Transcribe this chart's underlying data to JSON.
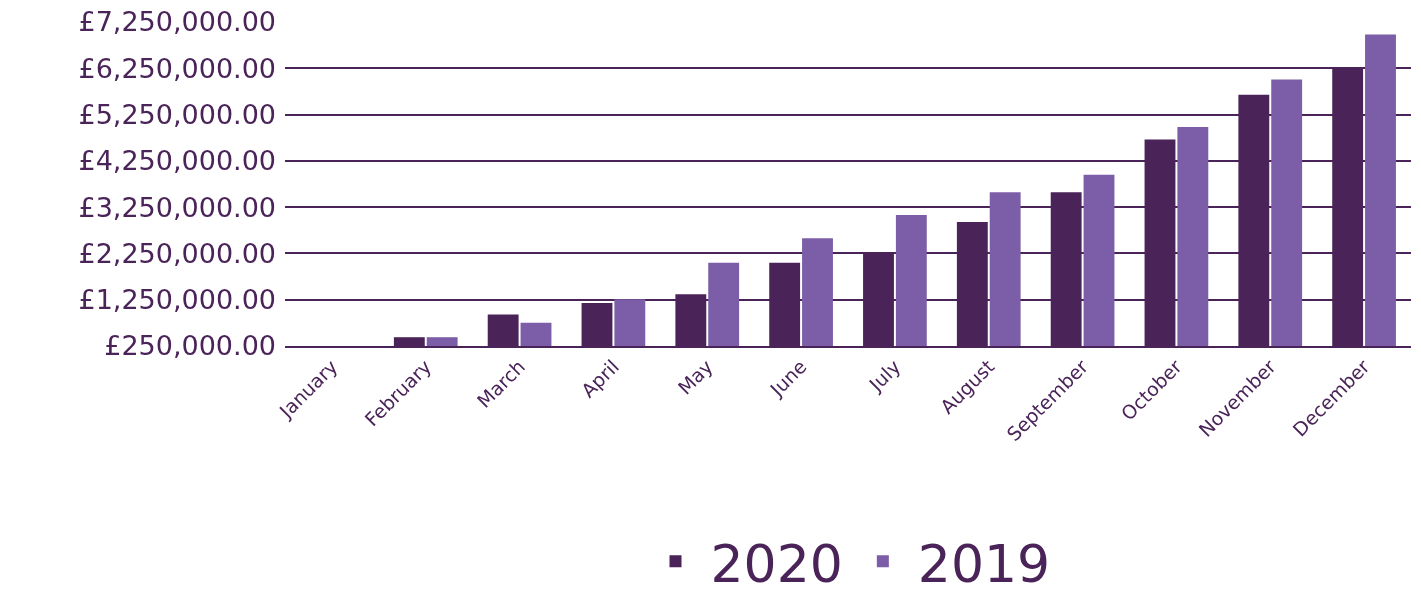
{
  "chart_data": {
    "type": "bar",
    "categories": [
      "January",
      "February",
      "March",
      "April",
      "May",
      "June",
      "July",
      "August",
      "September",
      "October",
      "November",
      "December"
    ],
    "series": [
      {
        "name": "2020",
        "color": "#4a2359",
        "values": [
          null,
          440000,
          930000,
          1180000,
          1370000,
          2050000,
          2250000,
          2930000,
          3570000,
          4710000,
          5680000,
          6250000
        ]
      },
      {
        "name": "2019",
        "color": "#7b5ea7",
        "values": [
          null,
          440000,
          750000,
          1260000,
          2050000,
          2580000,
          3080000,
          3570000,
          3950000,
          4980000,
          6010000,
          6980000
        ]
      }
    ],
    "ylim": [
      250000,
      7250000
    ],
    "yticks": [
      {
        "value": 250000,
        "label": "£250,000.00"
      },
      {
        "value": 1250000,
        "label": "£1,250,000.00"
      },
      {
        "value": 2250000,
        "label": "£2,250,000.00"
      },
      {
        "value": 3250000,
        "label": "£3,250,000.00"
      },
      {
        "value": 4250000,
        "label": "£4,250,000.00"
      },
      {
        "value": 5250000,
        "label": "£5,250,000.00"
      },
      {
        "value": 6250000,
        "label": "£6,250,000.00"
      },
      {
        "value": 7250000,
        "label": "£7,250,000.00"
      }
    ],
    "grid": "y",
    "legend": "bottom"
  }
}
